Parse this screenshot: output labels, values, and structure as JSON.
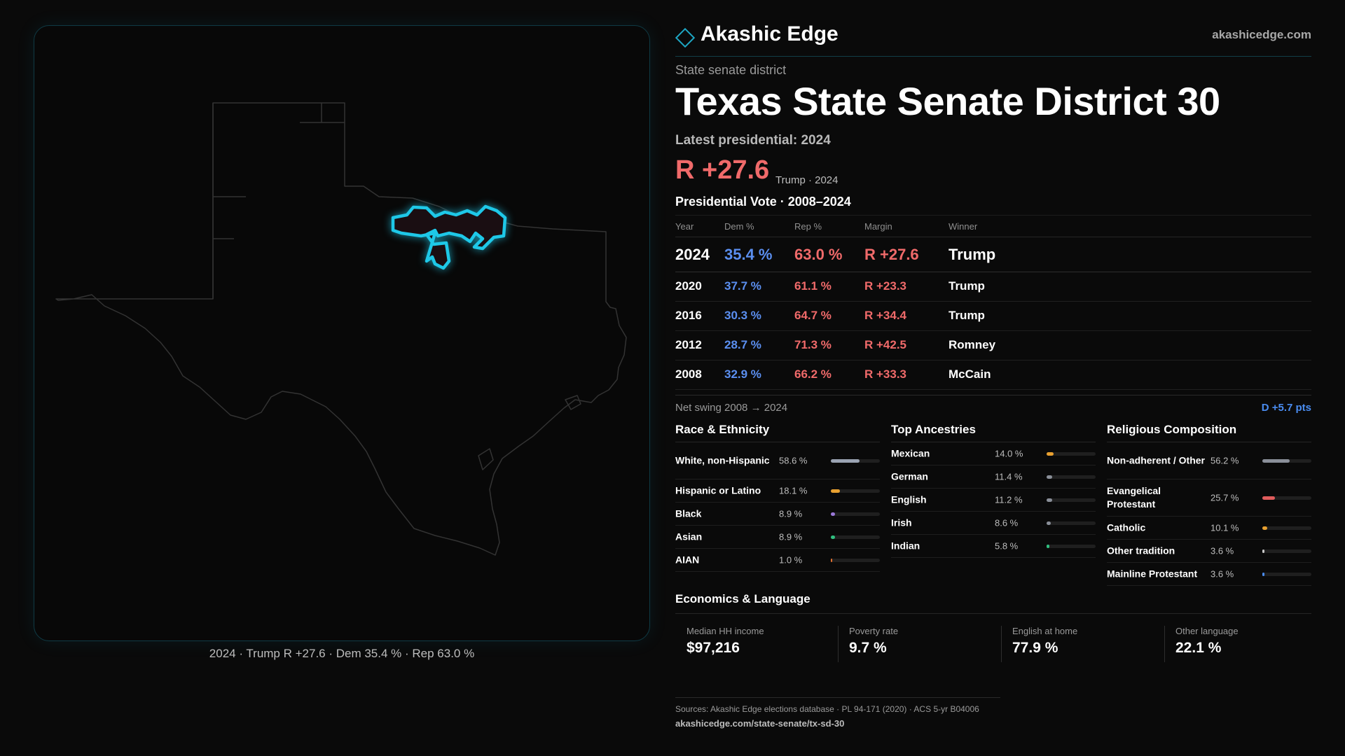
{
  "map": {
    "caption": "2024 · Trump R +27.6 · Dem 35.4 % · Rep 63.0 %",
    "highlight_color": "#1ec8e8",
    "outline_color": "#333333"
  },
  "header": {
    "brand": "Akashic Edge",
    "site": "akashicedge.com",
    "kind": "State senate district",
    "title": "Texas  State Senate District 30",
    "latest": "Latest presidential: 2024",
    "big_margin": "R +27.6",
    "big_sub": "Trump · 2024"
  },
  "votes": {
    "title": "Presidential Vote · 2008–2024",
    "headers": [
      "Year",
      "Dem %",
      "Rep %",
      "Margin",
      "Winner"
    ],
    "rows": [
      {
        "year": "2024",
        "dem": "35.4 %",
        "rep": "63.0 %",
        "margin": "R +27.6",
        "winner": "Trump"
      },
      {
        "year": "2020",
        "dem": "37.7 %",
        "rep": "61.1 %",
        "margin": "R +23.3",
        "winner": "Trump"
      },
      {
        "year": "2016",
        "dem": "30.3 %",
        "rep": "64.7 %",
        "margin": "R +34.4",
        "winner": "Trump"
      },
      {
        "year": "2012",
        "dem": "28.7 %",
        "rep": "71.3 %",
        "margin": "R +42.5",
        "winner": "Romney"
      },
      {
        "year": "2008",
        "dem": "32.9 %",
        "rep": "66.2 %",
        "margin": "R +33.3",
        "winner": "McCain"
      }
    ],
    "swing_label": "Net swing 2008 → 2024",
    "swing_value": "D +5.7 pts"
  },
  "race": {
    "title": "Race & Ethnicity",
    "rows": [
      {
        "label": "White, non-Hispanic",
        "pct": "58.6 %",
        "value": 58.6,
        "color": "#9aa3b2"
      },
      {
        "label": "Hispanic or Latino",
        "pct": "18.1 %",
        "value": 18.1,
        "color": "#e8a030"
      },
      {
        "label": "Black",
        "pct": "8.9 %",
        "value": 8.9,
        "color": "#9a78d8"
      },
      {
        "label": "Asian",
        "pct": "8.9 %",
        "value": 8.9,
        "color": "#30c080"
      },
      {
        "label": "AIAN",
        "pct": "1.0 %",
        "value": 1.0,
        "color": "#e07030"
      }
    ]
  },
  "ancestry": {
    "title": "Top Ancestries",
    "rows": [
      {
        "label": "Mexican",
        "pct": "14.0 %",
        "value": 14.0,
        "color": "#e8a030"
      },
      {
        "label": "German",
        "pct": "11.4 %",
        "value": 11.4,
        "color": "#8a8f99"
      },
      {
        "label": "English",
        "pct": "11.2 %",
        "value": 11.2,
        "color": "#8a8f99"
      },
      {
        "label": "Irish",
        "pct": "8.6 %",
        "value": 8.6,
        "color": "#8a8f99"
      },
      {
        "label": "Indian",
        "pct": "5.8 %",
        "value": 5.8,
        "color": "#30c080"
      }
    ]
  },
  "religion": {
    "title": "Religious Composition",
    "rows": [
      {
        "label": "Non-adherent / Other",
        "pct": "56.2 %",
        "value": 56.2,
        "color": "#8a8f99"
      },
      {
        "label": "Evangelical Protestant",
        "pct": "25.7 %",
        "value": 25.7,
        "color": "#e05c5c"
      },
      {
        "label": "Catholic",
        "pct": "10.1 %",
        "value": 10.1,
        "color": "#e8a030"
      },
      {
        "label": "Other tradition",
        "pct": "3.6 %",
        "value": 3.6,
        "color": "#c8c8c8"
      },
      {
        "label": "Mainline Protestant",
        "pct": "3.6 %",
        "value": 3.6,
        "color": "#4a8cf0"
      }
    ]
  },
  "economics": {
    "title": "Economics & Language",
    "cards": [
      {
        "label": "Median HH income",
        "value": "$97,216"
      },
      {
        "label": "Poverty rate",
        "value": "9.7 %"
      },
      {
        "label": "English at home",
        "value": "77.9 %"
      },
      {
        "label": "Other language",
        "value": "22.1 %"
      }
    ]
  },
  "sources": {
    "line": "Sources: Akashic Edge elections database · PL 94-171 (2020) · ACS 5-yr B04006",
    "url": "akashicedge.com/state-senate/tx-sd-30"
  }
}
